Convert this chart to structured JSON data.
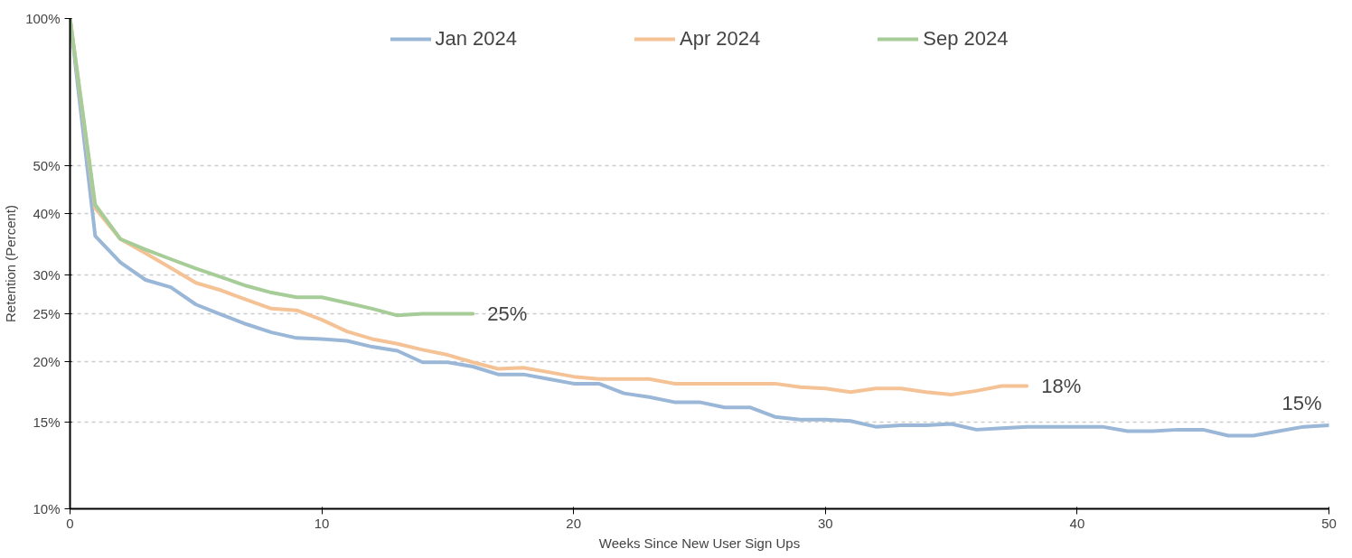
{
  "chart_data": {
    "type": "line",
    "xlabel": "Weeks Since New User Sign Ups",
    "ylabel": "Retention (Percent)",
    "log": "y",
    "xlim": [
      0,
      50
    ],
    "xticks": [
      0,
      10,
      20,
      30,
      40,
      50
    ],
    "ylim": [
      10,
      100
    ],
    "yticks": [
      {
        "value": 10,
        "label": "10%"
      },
      {
        "value": 15,
        "label": "15%"
      },
      {
        "value": 20,
        "label": "20%"
      },
      {
        "value": 25,
        "label": "25%"
      },
      {
        "value": 30,
        "label": "30%"
      },
      {
        "value": 40,
        "label": "40%"
      },
      {
        "value": 50,
        "label": "50%"
      },
      {
        "value": 100,
        "label": "100%"
      }
    ],
    "grid": "y",
    "legend": "top",
    "marker": "none",
    "line_style": "solid",
    "series": [
      {
        "name": "Jan 2024",
        "color": "#9ab7d7",
        "x": [
          0,
          1,
          2,
          3,
          4,
          5,
          6,
          7,
          8,
          9,
          10,
          11,
          12,
          13,
          14,
          15,
          16,
          17,
          18,
          19,
          20,
          21,
          22,
          23,
          24,
          25,
          26,
          27,
          28,
          29,
          30,
          31,
          32,
          33,
          34,
          35,
          36,
          37,
          38,
          39,
          40,
          41,
          42,
          43,
          44,
          45,
          46,
          47,
          48,
          49,
          50
        ],
        "values": [
          100,
          36.0,
          31.8,
          29.3,
          28.3,
          26.1,
          24.9,
          23.8,
          22.9,
          22.3,
          22.2,
          22.0,
          21.4,
          21.0,
          19.9,
          19.9,
          19.5,
          18.8,
          18.8,
          18.4,
          18.0,
          18.0,
          17.2,
          16.9,
          16.5,
          16.5,
          16.1,
          16.1,
          15.4,
          15.2,
          15.2,
          15.1,
          14.7,
          14.8,
          14.8,
          14.9,
          14.5,
          14.6,
          14.7,
          14.7,
          14.7,
          14.7,
          14.4,
          14.4,
          14.5,
          14.5,
          14.1,
          14.1,
          14.4,
          14.7,
          14.8
        ]
      },
      {
        "name": "Apr 2024",
        "color": "#f5c296",
        "x": [
          0,
          1,
          2,
          3,
          4,
          5,
          6,
          7,
          8,
          9,
          10,
          11,
          12,
          13,
          14,
          15,
          16,
          17,
          18,
          19,
          20,
          21,
          22,
          23,
          24,
          25,
          26,
          27,
          28,
          29,
          30,
          31,
          32,
          33,
          34,
          35,
          36,
          37,
          38
        ],
        "values": [
          100,
          41.0,
          35.5,
          33.2,
          31.0,
          28.9,
          27.9,
          26.7,
          25.6,
          25.4,
          24.3,
          23.0,
          22.2,
          21.7,
          21.1,
          20.6,
          19.9,
          19.3,
          19.4,
          19.0,
          18.6,
          18.4,
          18.4,
          18.4,
          18.0,
          18.0,
          18.0,
          18.0,
          18.0,
          17.7,
          17.6,
          17.3,
          17.6,
          17.6,
          17.3,
          17.1,
          17.4,
          17.8,
          17.8
        ]
      },
      {
        "name": "Sep 2024",
        "color": "#a6cc97",
        "x": [
          0,
          1,
          2,
          3,
          4,
          5,
          6,
          7,
          8,
          9,
          10,
          11,
          12,
          13,
          14,
          15,
          16
        ],
        "values": [
          100,
          41.7,
          35.5,
          33.8,
          32.3,
          30.9,
          29.7,
          28.5,
          27.6,
          27.0,
          27.0,
          26.3,
          25.6,
          24.8,
          25.0,
          25.0,
          25.0
        ]
      }
    ],
    "annotations": [
      {
        "text": "25%",
        "x": 16,
        "y": 25.0
      },
      {
        "text": "18%",
        "x": 38,
        "y": 17.8
      },
      {
        "text": "15%",
        "x": 50,
        "y": 14.8
      }
    ]
  }
}
